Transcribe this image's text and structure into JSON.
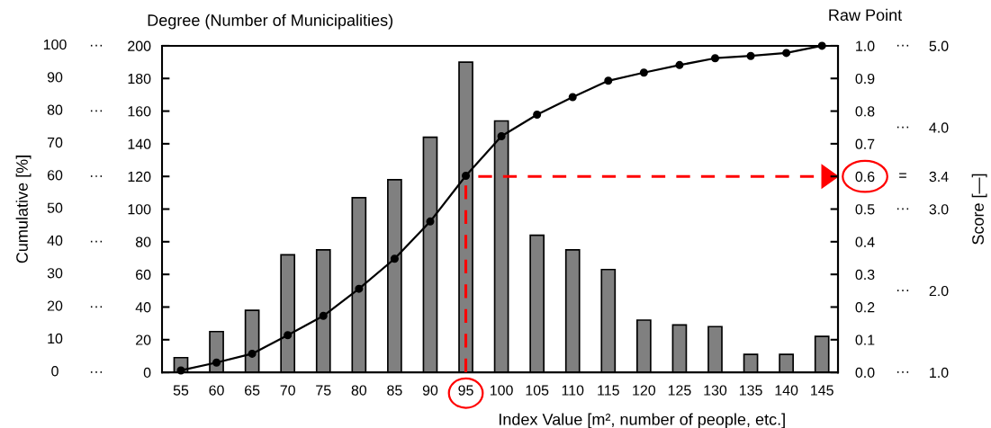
{
  "chart_data": {
    "type": "bar",
    "xlabel": "Index Value [m², number of people, etc.]",
    "ylabel": "Degree (Number of Municipalities)",
    "y2label": "Raw Point",
    "y3label": "Score [—]",
    "categories": [
      "55",
      "60",
      "65",
      "70",
      "75",
      "80",
      "85",
      "90",
      "95",
      "100",
      "105",
      "110",
      "115",
      "120",
      "125",
      "130",
      "135",
      "140",
      "145"
    ],
    "series": [
      {
        "color": "#808080",
        "values": [
          9,
          25,
          38,
          72,
          75,
          107,
          118,
          144,
          190,
          154,
          84,
          75,
          63,
          32,
          29,
          28,
          11,
          11,
          22
        ]
      },
      {
        "type": "line",
        "axis": "y2",
        "color": "#000000",
        "marker": "circle",
        "line_style": "solid",
        "values": [
          0.006,
          0.03,
          0.057,
          0.114,
          0.173,
          0.256,
          0.348,
          0.462,
          0.602,
          0.723,
          0.789,
          0.843,
          0.893,
          0.918,
          0.941,
          0.962,
          0.969,
          0.978,
          1.0
        ]
      }
    ],
    "ylim": [
      0,
      200
    ],
    "yticks": [
      0,
      20,
      40,
      60,
      80,
      100,
      120,
      140,
      160,
      180,
      200
    ],
    "y2lim": [
      0,
      1
    ],
    "y2ticks": [
      {
        "value": 0,
        "label": "0.0"
      },
      0.1,
      0.2,
      0.3,
      0.4,
      0.5,
      0.6,
      0.7,
      0.8,
      0.9,
      {
        "value": 1,
        "label": "1.0"
      }
    ],
    "y3lim": [
      1,
      5
    ],
    "y3ticks": [
      {
        "value": 1,
        "label": "1.0"
      },
      {
        "value": 2,
        "label": "2.0"
      },
      {
        "value": 3,
        "label": "3.0"
      },
      {
        "value": 3.4,
        "label": "3.4"
      },
      {
        "value": 4,
        "label": "4.0"
      },
      {
        "value": 5,
        "label": "5.0"
      }
    ],
    "annotations": [
      "Cumulative [%]",
      "100",
      "90",
      "80",
      "70",
      "60",
      "50",
      "40",
      "30",
      "20",
      "10",
      "0",
      "···",
      "···",
      "···",
      "···",
      "···",
      "···",
      "···",
      "···",
      "=",
      "···",
      "···",
      "···"
    ],
    "ref_lines": [
      {
        "axis": "x",
        "value": "95",
        "color": "#ff0000",
        "line_style": "dashed"
      },
      {
        "axis": "y2",
        "value": 0.6,
        "color": "#ff0000",
        "line_style": "dashed"
      }
    ],
    "grid": false,
    "legend": false
  }
}
